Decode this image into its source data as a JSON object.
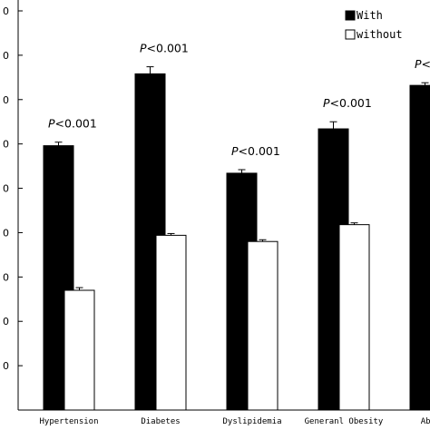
{
  "chart_data": {
    "type": "bar",
    "categories": [
      "Hypertension",
      "Diabetes",
      "Dyslipidemia",
      "Generanl Obesity",
      "Abdominal Obesity"
    ],
    "category_labels": [
      "Hypertension",
      "Diabetes",
      "Dyslipidemia",
      "Generanl Obesity",
      "Abdomi"
    ],
    "series": [
      {
        "name": "With",
        "color": "#000000",
        "values": [
          0.398,
          0.479,
          0.367,
          0.417,
          0.466
        ],
        "errors": [
          0.004,
          0.008,
          0.004,
          0.008,
          0.003
        ]
      },
      {
        "name": "without",
        "color": "#ffffff",
        "values": [
          0.235,
          0.297,
          0.29,
          0.309,
          null
        ],
        "errors": [
          0.003,
          0.002,
          0.002,
          0.002,
          null
        ]
      }
    ],
    "annotations": [
      {
        "category": "Hypertension",
        "p_label": "P",
        "p_value": "<0.001"
      },
      {
        "category": "Diabetes",
        "p_label": "P",
        "p_value": "<0.001"
      },
      {
        "category": "Dyslipidemia",
        "p_label": "P",
        "p_value": "<0.001"
      },
      {
        "category": "Generanl Obesity",
        "p_label": "P",
        "p_value": "<0.001"
      },
      {
        "category": "Abdominal Obesity",
        "p_label": "P",
        "p_value": "<"
      }
    ],
    "ytick_labels": [
      "0",
      "0",
      "0",
      "0",
      "0",
      "0",
      "0",
      "0",
      "0"
    ],
    "ylim": [
      0.1,
      0.55
    ],
    "yticks": [
      0.15,
      0.2,
      0.25,
      0.3,
      0.35,
      0.4,
      0.45,
      0.5,
      0.55
    ],
    "xlabel": "",
    "ylabel": "",
    "title": "",
    "legend_position": "top-right",
    "grid": false
  }
}
